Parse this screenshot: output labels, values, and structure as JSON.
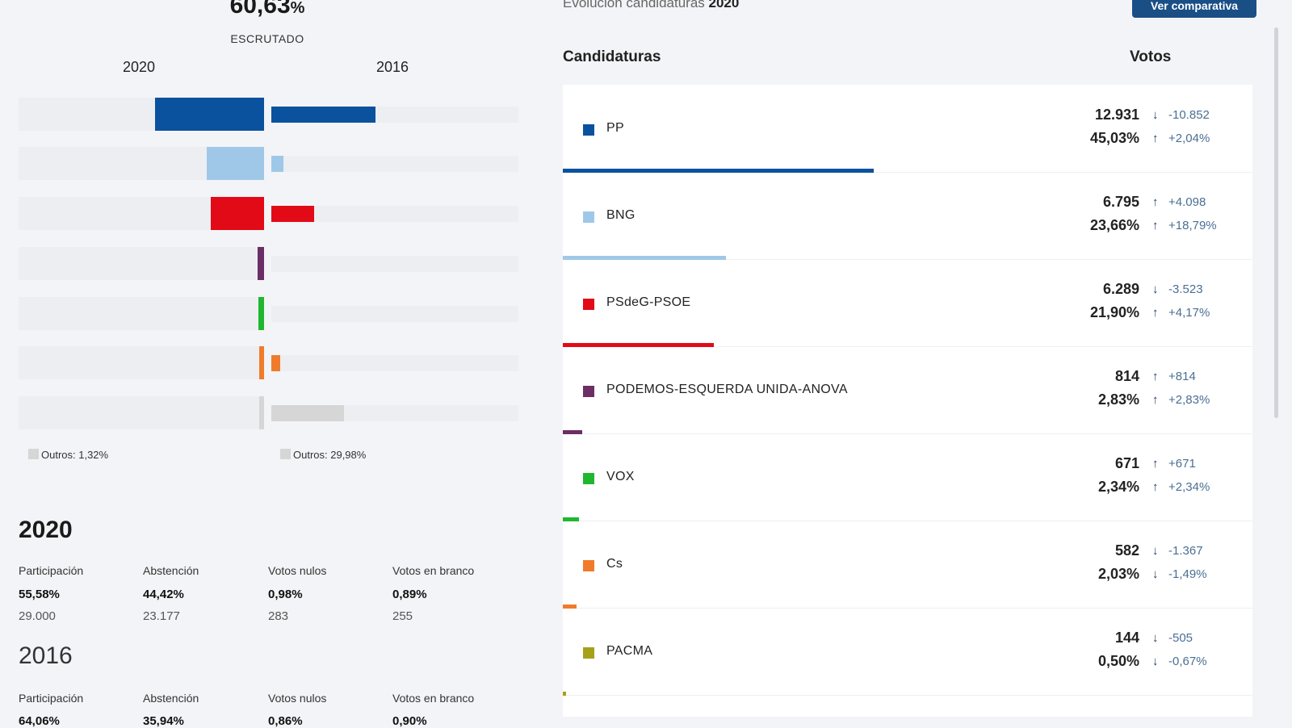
{
  "scrutiny": {
    "value": "60,63",
    "unit": "%",
    "label": "ESCRUTADO"
  },
  "years": {
    "left": "2020",
    "right": "2016"
  },
  "colors": {
    "PP": "#0a529e",
    "BNG": "#9fc8e8",
    "PSdeG-PSOE": "#e20a17",
    "PODEMOS-ESQUERDA UNIDA-ANOVA": "#6b2e66",
    "VOX": "#1fb730",
    "Cs": "#f07b2b",
    "PACMA": "#a6a01a",
    "others": "#d6d6d6",
    "accent": "#1a4f86"
  },
  "bars_2020": [
    {
      "party": "PP",
      "pct": 45.03
    },
    {
      "party": "BNG",
      "pct": 23.66
    },
    {
      "party": "PSdeG-PSOE",
      "pct": 21.9
    },
    {
      "party": "PODEMOS-ESQUERDA UNIDA-ANOVA",
      "pct": 2.83
    },
    {
      "party": "VOX",
      "pct": 2.34
    },
    {
      "party": "Cs",
      "pct": 2.03
    },
    {
      "party": "others",
      "pct": 1.32
    }
  ],
  "bars_2016": [
    {
      "party": "PP",
      "pct": 43.0
    },
    {
      "party": "BNG",
      "pct": 4.87
    },
    {
      "party": "PSdeG-PSOE",
      "pct": 17.73
    },
    {
      "party": "PODEMOS-ESQUERDA UNIDA-ANOVA",
      "pct": 0
    },
    {
      "party": "VOX",
      "pct": 0
    },
    {
      "party": "Cs",
      "pct": 3.52
    },
    {
      "party": "others",
      "pct": 29.98
    }
  ],
  "others": {
    "left": "Outros: 1,32%",
    "right": "Outros: 29,98%"
  },
  "stats": {
    "y2020": {
      "year": "2020",
      "cols": [
        {
          "label": "Participación",
          "pct": "55,58%",
          "num": "29.000"
        },
        {
          "label": "Abstención",
          "pct": "44,42%",
          "num": "23.177"
        },
        {
          "label": "Votos nulos",
          "pct": "0,98%",
          "num": "283"
        },
        {
          "label": "Votos en branco",
          "pct": "0,89%",
          "num": "255"
        }
      ]
    },
    "y2016": {
      "year": "2016",
      "cols": [
        {
          "label": "Participación",
          "pct": "64,06%"
        },
        {
          "label": "Abstención",
          "pct": "35,94%"
        },
        {
          "label": "Votos nulos",
          "pct": "0,86%"
        },
        {
          "label": "Votos en branco",
          "pct": "0,90%"
        }
      ]
    }
  },
  "evolution": {
    "title_prefix": "Evolución candidaturas",
    "title_year": "2020",
    "button": "Ver comparativa"
  },
  "table": {
    "col_candidates": "Candidaturas",
    "col_votes": "Votos",
    "rows": [
      {
        "name": "PP",
        "votes": "12.931",
        "pct": "45,03%",
        "dv": "-10.852",
        "dvdir": "down",
        "dp": "+2,04%",
        "dpdir": "up",
        "share": 45.03
      },
      {
        "name": "BNG",
        "votes": "6.795",
        "pct": "23,66%",
        "dv": "+4.098",
        "dvdir": "up",
        "dp": "+18,79%",
        "dpdir": "up",
        "share": 23.66
      },
      {
        "name": "PSdeG-PSOE",
        "votes": "6.289",
        "pct": "21,90%",
        "dv": "-3.523",
        "dvdir": "down",
        "dp": "+4,17%",
        "dpdir": "up",
        "share": 21.9
      },
      {
        "name": "PODEMOS-ESQUERDA UNIDA-ANOVA",
        "votes": "814",
        "pct": "2,83%",
        "dv": "+814",
        "dvdir": "up",
        "dp": "+2,83%",
        "dpdir": "up",
        "share": 2.83
      },
      {
        "name": "VOX",
        "votes": "671",
        "pct": "2,34%",
        "dv": "+671",
        "dvdir": "up",
        "dp": "+2,34%",
        "dpdir": "up",
        "share": 2.34
      },
      {
        "name": "Cs",
        "votes": "582",
        "pct": "2,03%",
        "dv": "-1.367",
        "dvdir": "down",
        "dp": "-1,49%",
        "dpdir": "down",
        "share": 2.03
      },
      {
        "name": "PACMA",
        "votes": "144",
        "pct": "0,50%",
        "dv": "-505",
        "dvdir": "down",
        "dp": "-0,67%",
        "dpdir": "down",
        "share": 0.5
      }
    ]
  }
}
